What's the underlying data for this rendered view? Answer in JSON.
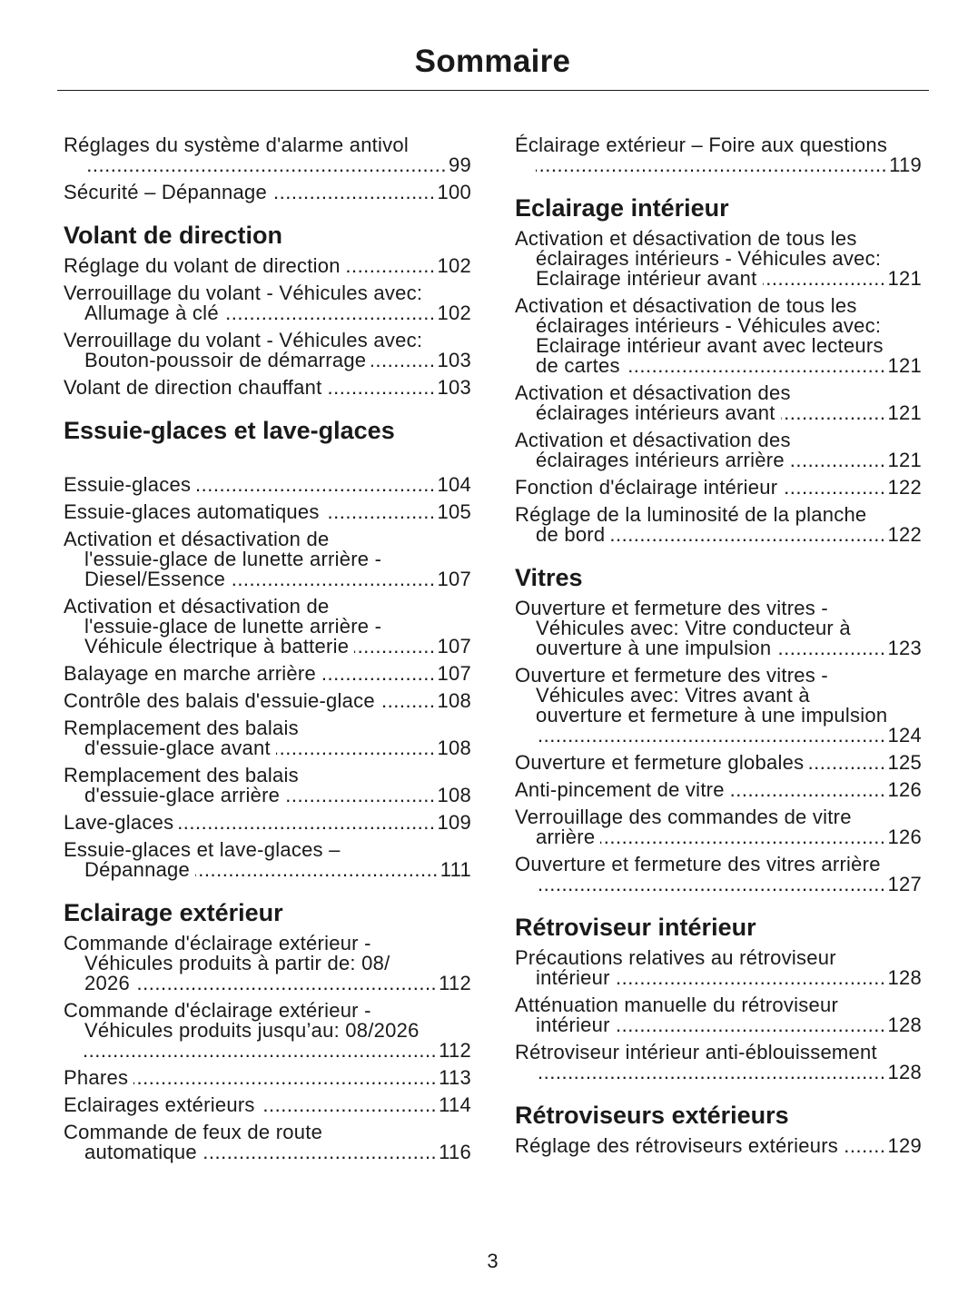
{
  "title": "Sommaire",
  "page_number": "3",
  "columns": [
    {
      "blocks": [
        {
          "type": "entry",
          "lines": [
            "Réglages du système d'alarme antivol",
            ""
          ],
          "page": "99"
        },
        {
          "type": "entry",
          "lines": [
            "Sécurité – Dépannage"
          ],
          "page": "100"
        },
        {
          "type": "heading",
          "text": "Volant de direction"
        },
        {
          "type": "entry",
          "lines": [
            "Réglage du volant de direction"
          ],
          "page": "102"
        },
        {
          "type": "entry",
          "lines": [
            "Verrouillage du volant - Véhicules avec:",
            "Allumage à clé"
          ],
          "page": "102"
        },
        {
          "type": "entry",
          "lines": [
            "Verrouillage du volant - Véhicules avec:",
            "Bouton-poussoir de démarrage"
          ],
          "page": "103"
        },
        {
          "type": "entry",
          "lines": [
            "Volant de direction chauffant"
          ],
          "page": "103"
        },
        {
          "type": "heading",
          "text": "Essuie-glaces et lave-glaces",
          "extra": true
        },
        {
          "type": "entry",
          "lines": [
            "Essuie-glaces"
          ],
          "page": "104"
        },
        {
          "type": "entry",
          "lines": [
            "Essuie-glaces automatiques"
          ],
          "page": "105"
        },
        {
          "type": "entry",
          "lines": [
            "Activation et désactivation de",
            "l'essuie-glace de lunette arrière -",
            "Diesel/Essence"
          ],
          "page": "107"
        },
        {
          "type": "entry",
          "lines": [
            "Activation et désactivation de",
            "l'essuie-glace de lunette arrière -",
            "Véhicule électrique à batterie"
          ],
          "page": "107"
        },
        {
          "type": "entry",
          "lines": [
            "Balayage en marche arrière"
          ],
          "page": "107"
        },
        {
          "type": "entry",
          "lines": [
            "Contrôle des balais d'essuie-glace"
          ],
          "page": "108"
        },
        {
          "type": "entry",
          "lines": [
            "Remplacement des balais",
            "d'essuie-glace avant"
          ],
          "page": "108"
        },
        {
          "type": "entry",
          "lines": [
            "Remplacement des balais",
            "d'essuie-glace arrière"
          ],
          "page": "108"
        },
        {
          "type": "entry",
          "lines": [
            "Lave-glaces"
          ],
          "page": "109"
        },
        {
          "type": "entry",
          "lines": [
            "Essuie-glaces et lave-glaces –",
            "Dépannage"
          ],
          "page": "111"
        },
        {
          "type": "heading",
          "text": "Eclairage extérieur"
        },
        {
          "type": "entry",
          "lines": [
            "Commande d'éclairage extérieur -",
            "Véhicules produits à partir de: 08/",
            "2026"
          ],
          "page": "112"
        },
        {
          "type": "entry",
          "lines": [
            "Commande d'éclairage extérieur -",
            "Véhicules produits jusqu’au: 08/2026",
            ""
          ],
          "page": "112"
        },
        {
          "type": "entry",
          "lines": [
            "Phares"
          ],
          "page": "113"
        },
        {
          "type": "entry",
          "lines": [
            "Eclairages extérieurs"
          ],
          "page": "114"
        },
        {
          "type": "entry",
          "lines": [
            "Commande de feux de route",
            "automatique"
          ],
          "page": "116"
        }
      ]
    },
    {
      "blocks": [
        {
          "type": "entry",
          "lines": [
            "Éclairage extérieur – Foire aux questions",
            ""
          ],
          "page": "119"
        },
        {
          "type": "heading",
          "text": "Eclairage intérieur"
        },
        {
          "type": "entry",
          "lines": [
            "Activation et désactivation de tous les",
            "éclairages intérieurs - Véhicules avec:",
            "Eclairage intérieur avant"
          ],
          "page": "121"
        },
        {
          "type": "entry",
          "lines": [
            "Activation et désactivation de tous les",
            "éclairages intérieurs - Véhicules avec:",
            "Eclairage intérieur avant avec lecteurs",
            "de cartes"
          ],
          "page": "121"
        },
        {
          "type": "entry",
          "lines": [
            "Activation et désactivation des",
            "éclairages intérieurs avant"
          ],
          "page": "121"
        },
        {
          "type": "entry",
          "lines": [
            "Activation et désactivation des",
            "éclairages intérieurs arrière"
          ],
          "page": "121"
        },
        {
          "type": "entry",
          "lines": [
            "Fonction d'éclairage intérieur"
          ],
          "page": "122"
        },
        {
          "type": "entry",
          "lines": [
            "Réglage de la luminosité de la planche",
            "de bord"
          ],
          "page": "122"
        },
        {
          "type": "heading",
          "text": "Vitres"
        },
        {
          "type": "entry",
          "lines": [
            "Ouverture et fermeture des vitres -",
            "Véhicules avec: Vitre conducteur à",
            "ouverture à une impulsion"
          ],
          "page": "123"
        },
        {
          "type": "entry",
          "lines": [
            "Ouverture et fermeture des vitres -",
            "Véhicules avec: Vitres avant à",
            "ouverture et fermeture à une impulsion",
            ""
          ],
          "page": "124"
        },
        {
          "type": "entry",
          "lines": [
            "Ouverture et fermeture globales"
          ],
          "page": "125"
        },
        {
          "type": "entry",
          "lines": [
            "Anti-pincement de vitre"
          ],
          "page": "126"
        },
        {
          "type": "entry",
          "lines": [
            "Verrouillage des commandes de vitre",
            "arrière"
          ],
          "page": "126"
        },
        {
          "type": "entry",
          "lines": [
            "Ouverture et fermeture des vitres arrière",
            ""
          ],
          "page": "127"
        },
        {
          "type": "heading",
          "text": "Rétroviseur intérieur"
        },
        {
          "type": "entry",
          "lines": [
            "Précautions relatives au rétroviseur",
            "intérieur"
          ],
          "page": "128"
        },
        {
          "type": "entry",
          "lines": [
            "Atténuation manuelle du rétroviseur",
            "intérieur"
          ],
          "page": "128"
        },
        {
          "type": "entry",
          "lines": [
            "Rétroviseur intérieur anti-éblouissement",
            ""
          ],
          "page": "128"
        },
        {
          "type": "heading",
          "text": "Rétroviseurs extérieurs"
        },
        {
          "type": "entry",
          "lines": [
            "Réglage des rétroviseurs extérieurs"
          ],
          "page": "129"
        }
      ]
    }
  ]
}
